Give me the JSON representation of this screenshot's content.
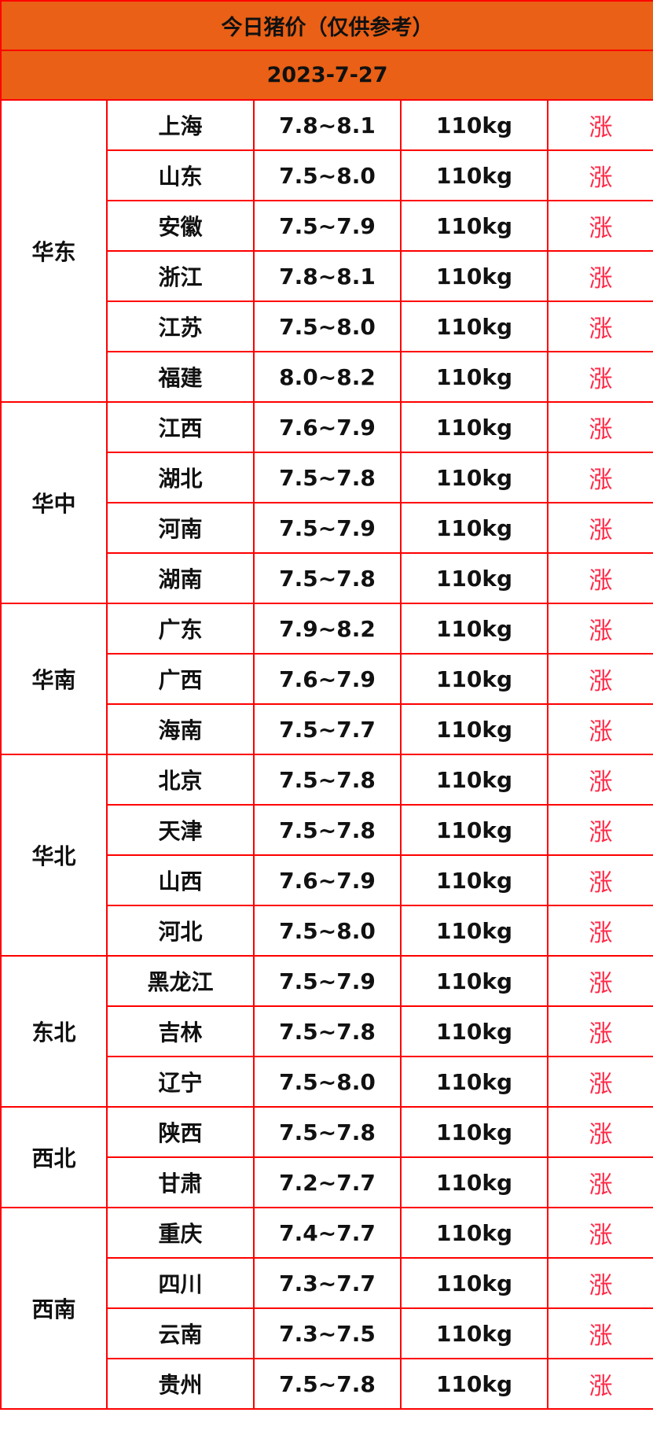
{
  "title": "今日猪价（仅供参考）",
  "date": "2023-7-27",
  "colors": {
    "header_bg": "#e96016",
    "border": "#ff0000",
    "trend": "#ff2a48"
  },
  "regions": [
    {
      "name": "华东",
      "rows": [
        {
          "province": "上海",
          "price": "7.8~8.1",
          "weight": "110kg",
          "trend": "涨"
        },
        {
          "province": "山东",
          "price": "7.5~8.0",
          "weight": "110kg",
          "trend": "涨"
        },
        {
          "province": "安徽",
          "price": "7.5~7.9",
          "weight": "110kg",
          "trend": "涨"
        },
        {
          "province": "浙江",
          "price": "7.8~8.1",
          "weight": "110kg",
          "trend": "涨"
        },
        {
          "province": "江苏",
          "price": "7.5~8.0",
          "weight": "110kg",
          "trend": "涨"
        },
        {
          "province": "福建",
          "price": "8.0~8.2",
          "weight": "110kg",
          "trend": "涨"
        }
      ]
    },
    {
      "name": "华中",
      "rows": [
        {
          "province": "江西",
          "price": "7.6~7.9",
          "weight": "110kg",
          "trend": "涨"
        },
        {
          "province": "湖北",
          "price": "7.5~7.8",
          "weight": "110kg",
          "trend": "涨"
        },
        {
          "province": "河南",
          "price": "7.5~7.9",
          "weight": "110kg",
          "trend": "涨"
        },
        {
          "province": "湖南",
          "price": "7.5~7.8",
          "weight": "110kg",
          "trend": "涨"
        }
      ]
    },
    {
      "name": "华南",
      "rows": [
        {
          "province": "广东",
          "price": "7.9~8.2",
          "weight": "110kg",
          "trend": "涨"
        },
        {
          "province": "广西",
          "price": "7.6~7.9",
          "weight": "110kg",
          "trend": "涨"
        },
        {
          "province": "海南",
          "price": "7.5~7.7",
          "weight": "110kg",
          "trend": "涨"
        }
      ]
    },
    {
      "name": "华北",
      "rows": [
        {
          "province": "北京",
          "price": "7.5~7.8",
          "weight": "110kg",
          "trend": "涨"
        },
        {
          "province": "天津",
          "price": "7.5~7.8",
          "weight": "110kg",
          "trend": "涨"
        },
        {
          "province": "山西",
          "price": "7.6~7.9",
          "weight": "110kg",
          "trend": "涨"
        },
        {
          "province": "河北",
          "price": "7.5~8.0",
          "weight": "110kg",
          "trend": "涨"
        }
      ]
    },
    {
      "name": "东北",
      "rows": [
        {
          "province": "黑龙江",
          "price": "7.5~7.9",
          "weight": "110kg",
          "trend": "涨"
        },
        {
          "province": "吉林",
          "price": "7.5~7.8",
          "weight": "110kg",
          "trend": "涨"
        },
        {
          "province": "辽宁",
          "price": "7.5~8.0",
          "weight": "110kg",
          "trend": "涨"
        }
      ]
    },
    {
      "name": "西北",
      "rows": [
        {
          "province": "陕西",
          "price": "7.5~7.8",
          "weight": "110kg",
          "trend": "涨"
        },
        {
          "province": "甘肃",
          "price": "7.2~7.7",
          "weight": "110kg",
          "trend": "涨"
        }
      ]
    },
    {
      "name": "西南",
      "rows": [
        {
          "province": "重庆",
          "price": "7.4~7.7",
          "weight": "110kg",
          "trend": "涨"
        },
        {
          "province": "四川",
          "price": "7.3~7.7",
          "weight": "110kg",
          "trend": "涨"
        },
        {
          "province": "云南",
          "price": "7.3~7.5",
          "weight": "110kg",
          "trend": "涨"
        },
        {
          "province": "贵州",
          "price": "7.5~7.8",
          "weight": "110kg",
          "trend": "涨"
        }
      ]
    }
  ]
}
